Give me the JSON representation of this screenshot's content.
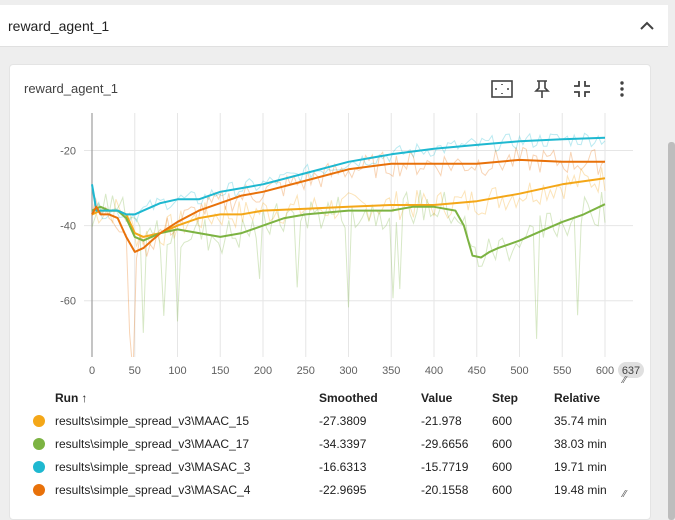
{
  "section": {
    "title": "reward_agent_1"
  },
  "card": {
    "title": "reward_agent_1"
  },
  "table": {
    "headers": {
      "run": "Run",
      "smoothed": "Smoothed",
      "value": "Value",
      "step": "Step",
      "relative": "Relative"
    },
    "rows": [
      {
        "run": "results\\simple_spread_v3\\MAAC_15",
        "smoothed": "-27.3809",
        "value": "-21.978",
        "step": "600",
        "relative": "35.74 min",
        "color": "#f4a718"
      },
      {
        "run": "results\\simple_spread_v3\\MAAC_17",
        "smoothed": "-34.3397",
        "value": "-29.6656",
        "step": "600",
        "relative": "38.03 min",
        "color": "#7cb342"
      },
      {
        "run": "results\\simple_spread_v3\\MASAC_3",
        "smoothed": "-16.6313",
        "value": "-15.7719",
        "step": "600",
        "relative": "19.71 min",
        "color": "#1eb8d0"
      },
      {
        "run": "results\\simple_spread_v3\\MASAC_4",
        "smoothed": "-22.9695",
        "value": "-20.1558",
        "step": "600",
        "relative": "19.48 min",
        "color": "#e8710a"
      }
    ]
  },
  "chart_data": {
    "type": "line",
    "xlim": [
      0,
      637
    ],
    "ylim": [
      -75,
      -10
    ],
    "xticks": [
      0,
      50,
      100,
      150,
      200,
      250,
      300,
      350,
      400,
      450,
      500,
      550,
      600
    ],
    "yticks": [
      -20,
      -40,
      -60
    ],
    "xmax_badge": "637",
    "series": [
      {
        "name": "results\\simple_spread_v3\\MAAC_15",
        "color": "#f4a718",
        "x": [
          0,
          10,
          20,
          30,
          40,
          50,
          60,
          80,
          100,
          125,
          150,
          175,
          200,
          250,
          300,
          350,
          400,
          450,
          500,
          550,
          600
        ],
        "y": [
          -37,
          -36,
          -36,
          -36,
          -37,
          -42,
          -43,
          -42,
          -40,
          -38,
          -37,
          -37,
          -36,
          -35.5,
          -35,
          -34.5,
          -34.5,
          -33.5,
          -31.5,
          -29,
          -27.4
        ]
      },
      {
        "name": "results\\simple_spread_v3\\MAAC_17",
        "color": "#7cb342",
        "x": [
          0,
          10,
          20,
          30,
          40,
          50,
          60,
          80,
          100,
          125,
          150,
          175,
          200,
          225,
          250,
          300,
          350,
          375,
          400,
          425,
          435,
          440,
          445,
          455,
          465,
          475,
          500,
          525,
          550,
          575,
          600
        ],
        "y": [
          -36,
          -35,
          -36,
          -36,
          -38,
          -43,
          -44,
          -42,
          -41,
          -42,
          -43,
          -42,
          -40,
          -38,
          -37,
          -36,
          -36,
          -35,
          -35,
          -36,
          -40,
          -44,
          -48,
          -48.5,
          -47,
          -46,
          -44,
          -41.5,
          -39,
          -37,
          -34.3
        ]
      },
      {
        "name": "results\\simple_spread_v3\\MASAC_3",
        "color": "#1eb8d0",
        "x": [
          0,
          3,
          5,
          10,
          20,
          30,
          40,
          50,
          60,
          80,
          100,
          125,
          150,
          175,
          200,
          250,
          300,
          350,
          400,
          450,
          500,
          550,
          600
        ],
        "y": [
          -29,
          -33,
          -36,
          -36,
          -36,
          -36,
          -37,
          -37,
          -36,
          -34,
          -33,
          -33,
          -31,
          -30,
          -29,
          -26,
          -23,
          -21,
          -19.5,
          -18.5,
          -17.5,
          -17,
          -16.6
        ]
      },
      {
        "name": "results\\simple_spread_v3\\MASAC_4",
        "color": "#e8710a",
        "x": [
          0,
          5,
          10,
          20,
          30,
          40,
          50,
          60,
          70,
          80,
          100,
          125,
          150,
          175,
          200,
          250,
          300,
          350,
          400,
          450,
          500,
          550,
          600
        ],
        "y": [
          -37,
          -35,
          -37,
          -37,
          -38,
          -43,
          -47,
          -46,
          -44,
          -42,
          -39,
          -36,
          -34,
          -32,
          -31,
          -28,
          -25,
          -23.5,
          -23.5,
          -23.5,
          -22.5,
          -23,
          -23
        ]
      }
    ]
  }
}
